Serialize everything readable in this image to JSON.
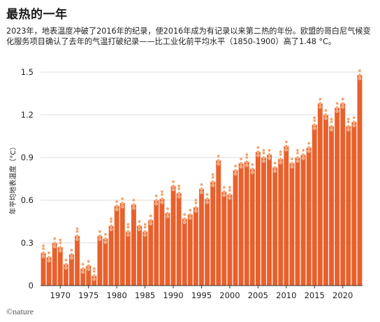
{
  "title": "最热的一年",
  "subtitle": "2023年，地表温度冲破了2016年的纪录，使2016年成为有记录以来第二热的年份。欧盟的哥白尼气候变化服务项目确认了去年的气温打破纪录——比工业化前平均水平（1850-1900）高了1.48 °C。",
  "footer": "©nature",
  "colors": {
    "bar": "#e8602c",
    "dots": "#f4a36b",
    "axis": "#333333"
  },
  "chart_data": {
    "type": "bar",
    "ylabel": "年平均地表温度（°C）",
    "ylim": [
      0,
      1.5
    ],
    "yticks": [
      0,
      0.3,
      0.6,
      0.9,
      1.2,
      1.5
    ],
    "ytick_labels": [
      "0",
      "0.3",
      "0.6",
      "0.9",
      "1.2",
      "1.5"
    ],
    "xticks": [
      1970,
      1975,
      1980,
      1985,
      1990,
      1995,
      2000,
      2005,
      2010,
      2015,
      2020
    ],
    "categories": [
      1967,
      1968,
      1969,
      1970,
      1971,
      1972,
      1973,
      1974,
      1975,
      1976,
      1977,
      1978,
      1979,
      1980,
      1981,
      1982,
      1983,
      1984,
      1985,
      1986,
      1987,
      1988,
      1989,
      1990,
      1991,
      1992,
      1993,
      1994,
      1995,
      1996,
      1997,
      1998,
      1999,
      2000,
      2001,
      2002,
      2003,
      2004,
      2005,
      2006,
      2007,
      2008,
      2009,
      2010,
      2011,
      2012,
      2013,
      2014,
      2015,
      2016,
      2017,
      2018,
      2019,
      2020,
      2021,
      2022,
      2023
    ],
    "values": [
      0.23,
      0.2,
      0.3,
      0.27,
      0.15,
      0.22,
      0.35,
      0.12,
      0.14,
      0.07,
      0.35,
      0.33,
      0.42,
      0.56,
      0.58,
      0.38,
      0.57,
      0.42,
      0.38,
      0.46,
      0.6,
      0.61,
      0.51,
      0.7,
      0.65,
      0.47,
      0.5,
      0.55,
      0.68,
      0.61,
      0.73,
      0.88,
      0.66,
      0.64,
      0.81,
      0.86,
      0.87,
      0.82,
      0.94,
      0.9,
      0.92,
      0.83,
      0.89,
      0.98,
      0.86,
      0.9,
      0.92,
      0.97,
      1.13,
      1.28,
      1.2,
      1.12,
      1.25,
      1.28,
      1.12,
      1.15,
      1.48
    ]
  }
}
